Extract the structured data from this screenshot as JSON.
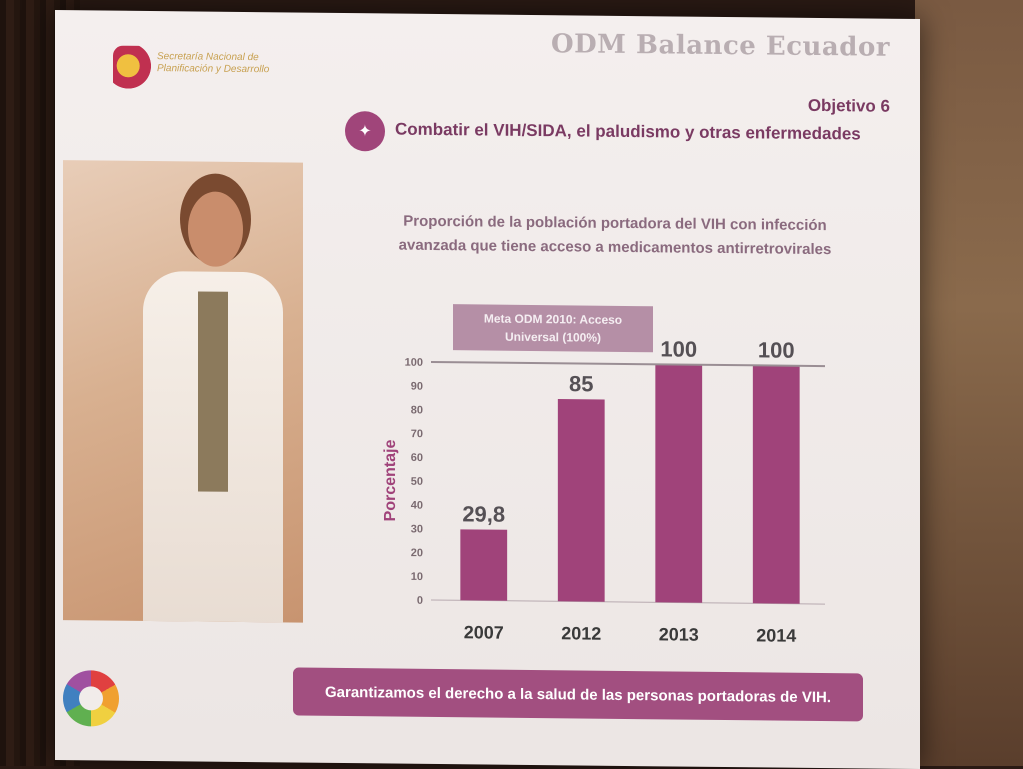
{
  "slide": {
    "title": "ODM Balance Ecuador",
    "objective": "Objetivo 6",
    "objective_desc": "Combatir el VIH/SIDA,  el paludismo y otras enfermedades",
    "logo_text": "Secretaría Nacional de Planificación y Desarrollo",
    "footer": "Garantizamos el derecho a la salud de las personas portadoras de VIH."
  },
  "chart_data": {
    "type": "bar",
    "title_lines": [
      "Proporción de la población portadora del VIH con infección",
      "avanzada que tiene acceso a medicamentos antirretrovirales"
    ],
    "categories": [
      "2007",
      "2012",
      "2013",
      "2014"
    ],
    "values": [
      29.8,
      85,
      100,
      100
    ],
    "value_labels": [
      "29,8",
      "85",
      "100",
      "100"
    ],
    "ylabel": "Porcentaje",
    "ylim": [
      0,
      100
    ],
    "yticks": [
      "0",
      "10",
      "20",
      "30",
      "40",
      "50",
      "60",
      "70",
      "80",
      "90",
      "100"
    ],
    "target_label_lines": [
      "Meta ODM 2010: Acceso",
      "Universal (100%)"
    ],
    "target_value": 100,
    "bar_color": "#a0437a"
  }
}
